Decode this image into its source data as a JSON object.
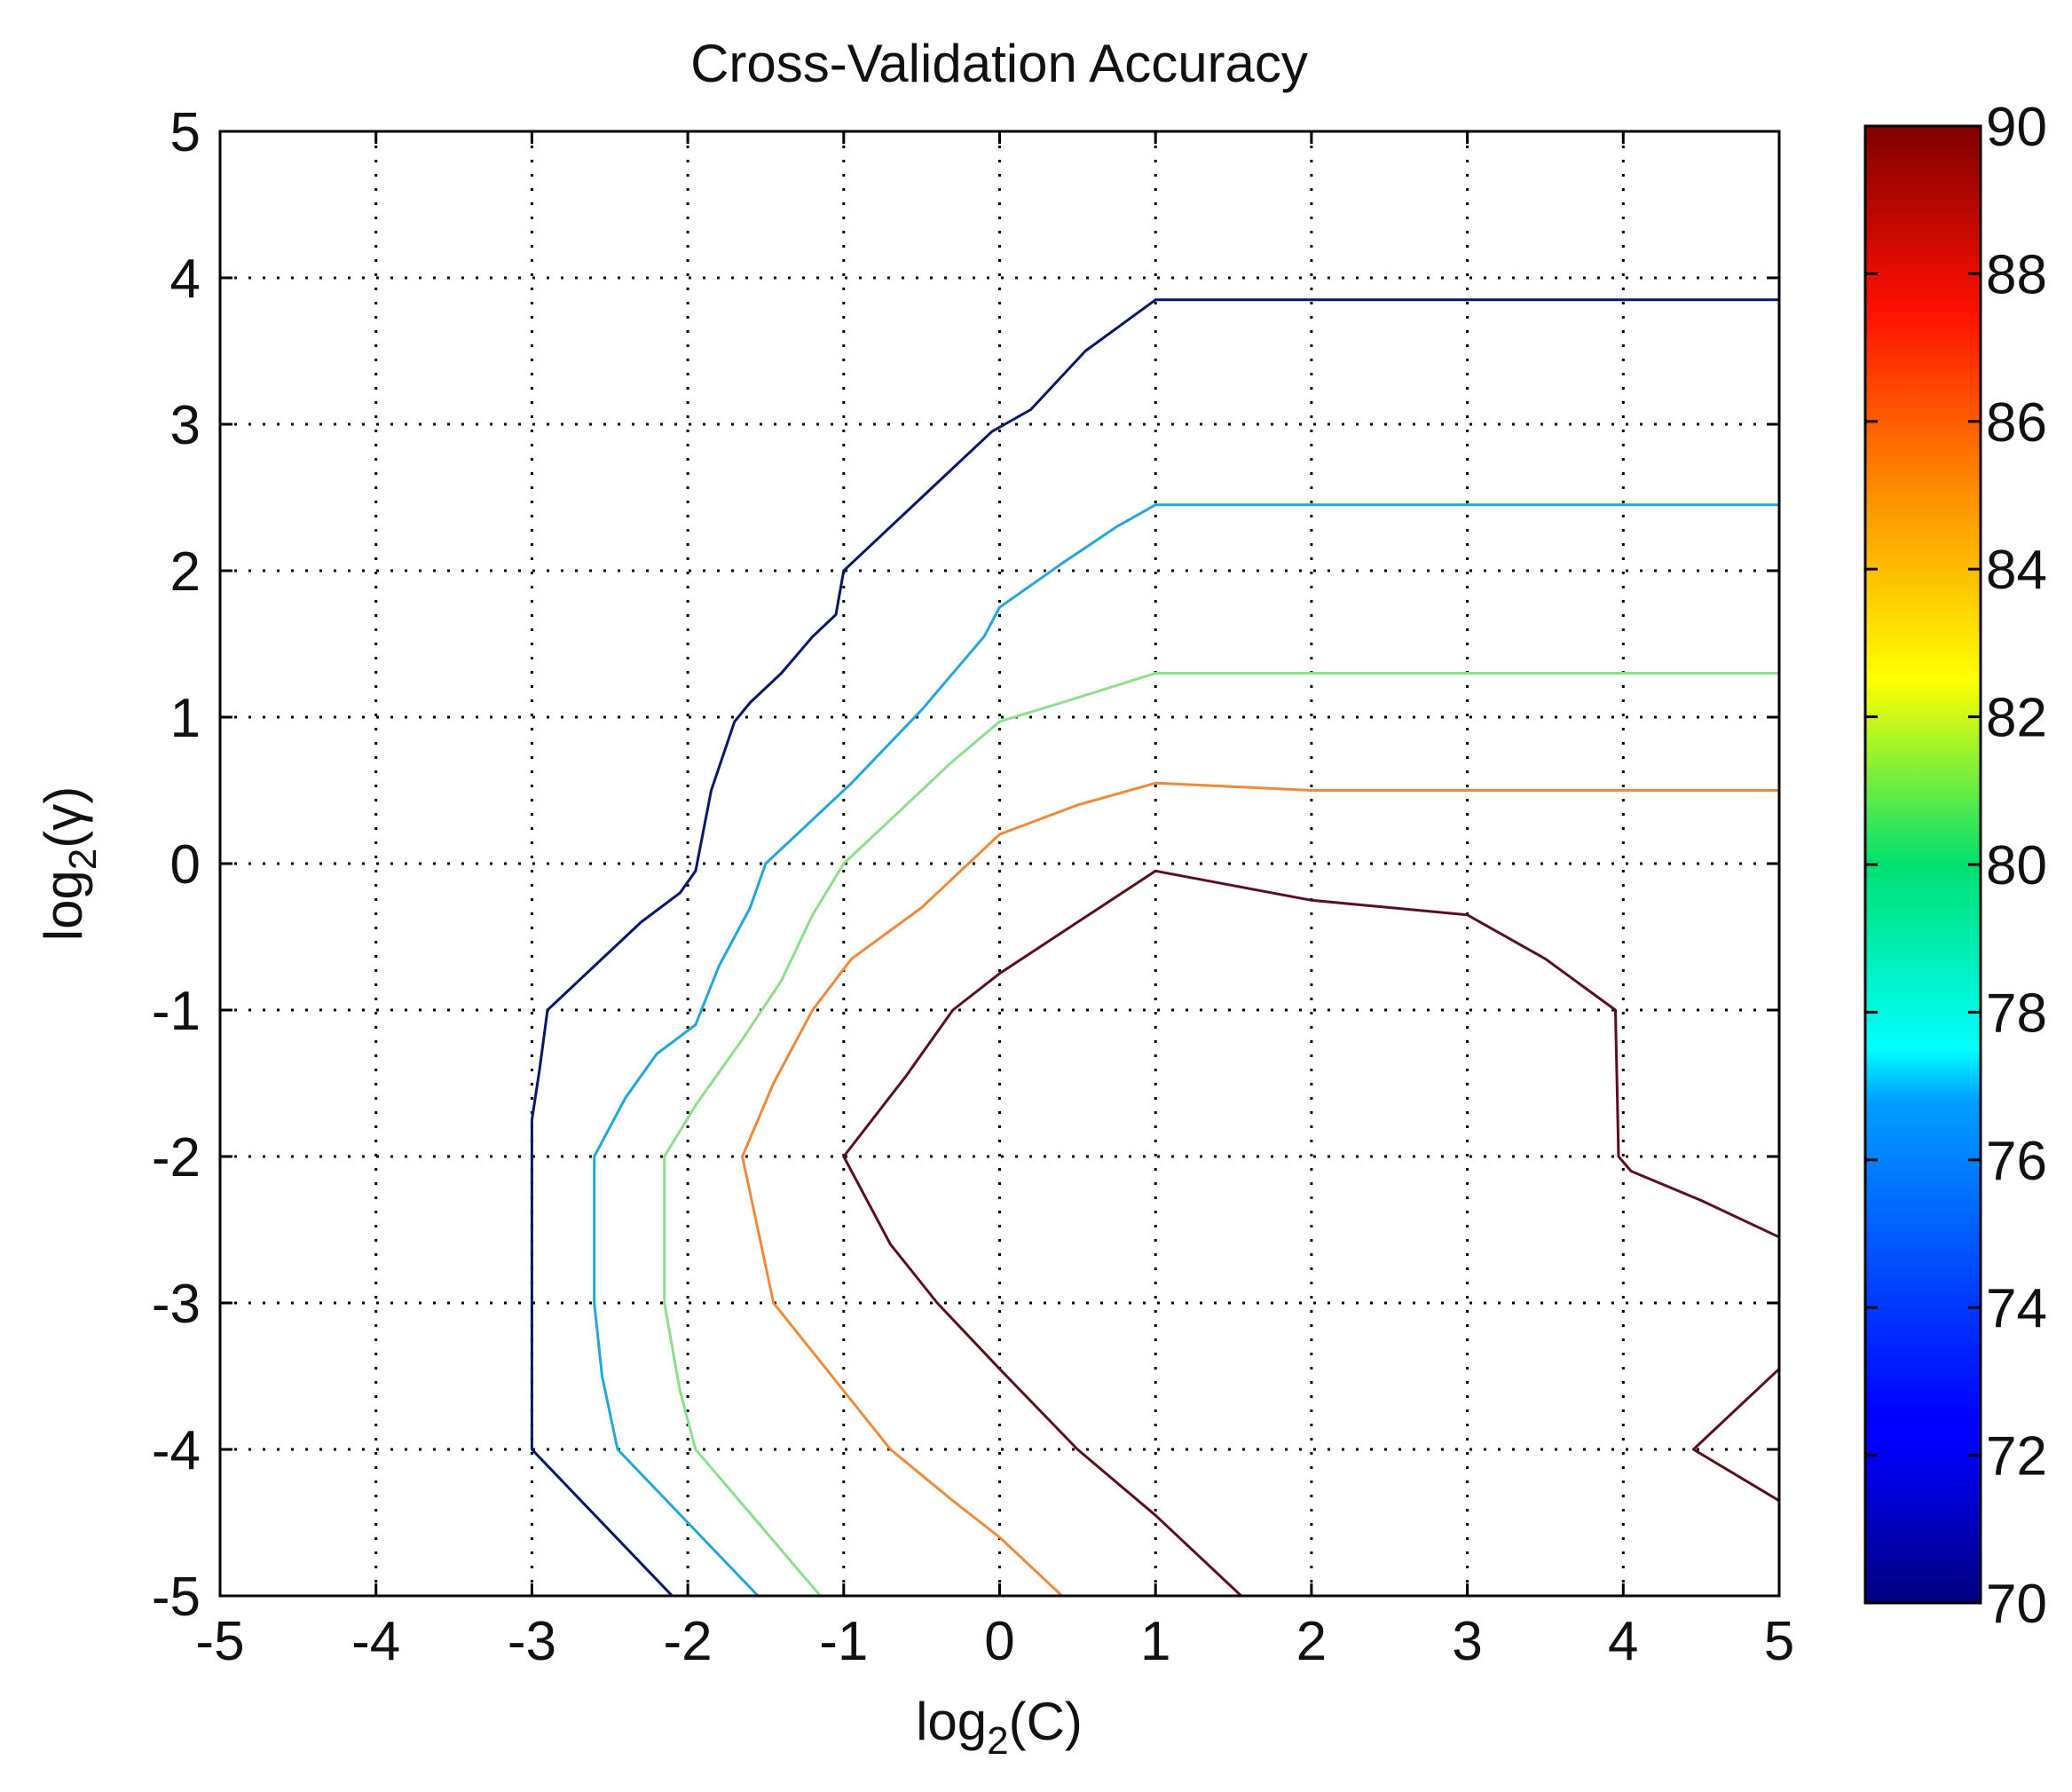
{
  "chart_data": {
    "type": "contour",
    "title": "Cross-Validation Accuracy",
    "xlabel": "log2(C)",
    "xlabel_parts": {
      "base": "log",
      "sub": "2",
      "arg": "(C)"
    },
    "ylabel": "log2(γ)",
    "ylabel_parts": {
      "base": "log",
      "sub": "2",
      "arg": "(γ)"
    },
    "xlim": [
      -5,
      5
    ],
    "ylim": [
      -5,
      5
    ],
    "xticks": [
      -5,
      -4,
      -3,
      -2,
      -1,
      0,
      1,
      2,
      3,
      4,
      5
    ],
    "yticks": [
      -5,
      -4,
      -3,
      -2,
      -1,
      0,
      1,
      2,
      3,
      4,
      5
    ],
    "xtick_labels": [
      "-5",
      "-4",
      "-3",
      "-2",
      "-1",
      "0",
      "1",
      "2",
      "3",
      "4",
      "5"
    ],
    "ytick_labels": [
      "-5",
      "-4",
      "-3",
      "-2",
      "-1",
      "0",
      "1",
      "2",
      "3",
      "4",
      "5"
    ],
    "grid": true,
    "colorbar": {
      "range": [
        70,
        90
      ],
      "ticks": [
        70,
        72,
        74,
        76,
        78,
        80,
        82,
        84,
        86,
        88,
        90
      ],
      "tick_labels": [
        "70",
        "72",
        "74",
        "76",
        "78",
        "80",
        "82",
        "84",
        "86",
        "88",
        "90"
      ],
      "colormap": "jet"
    },
    "contours": [
      {
        "level": 71,
        "color": "#0a1668",
        "segments": [
          [
            [
              -2.1,
              -5
            ],
            [
              -3,
              -4
            ],
            [
              -3,
              -1.75
            ],
            [
              -2.95,
              -1.4
            ],
            [
              -2.9,
              -1
            ],
            [
              -2.6,
              -0.7
            ],
            [
              -2.3,
              -0.4
            ],
            [
              -2.05,
              -0.2
            ],
            [
              -1.95,
              -0.05
            ],
            [
              -1.85,
              0.5
            ],
            [
              -1.7,
              0.97
            ],
            [
              -1.6,
              1.1
            ],
            [
              -1.4,
              1.3
            ],
            [
              -1.2,
              1.55
            ],
            [
              -1.05,
              1.7
            ],
            [
              -1.0,
              2.0
            ],
            [
              -0.6,
              2.4
            ],
            [
              -0.3,
              2.7
            ],
            [
              -0.05,
              2.95
            ],
            [
              0.2,
              3.1
            ],
            [
              0.55,
              3.5
            ],
            [
              1,
              3.85
            ],
            [
              5,
              3.85
            ]
          ]
        ]
      },
      {
        "level": 76,
        "color": "#22a6dc",
        "segments": [
          [
            [
              -1.55,
              -5
            ],
            [
              -2.0,
              -4.5
            ],
            [
              -2.45,
              -4
            ],
            [
              -2.55,
              -3.5
            ],
            [
              -2.6,
              -3
            ],
            [
              -2.6,
              -2
            ],
            [
              -2.4,
              -1.6
            ],
            [
              -2.2,
              -1.3
            ],
            [
              -1.95,
              -1.1
            ],
            [
              -1.8,
              -0.7
            ],
            [
              -1.6,
              -0.3
            ],
            [
              -1.5,
              0
            ],
            [
              -1.3,
              0.2
            ],
            [
              -0.95,
              0.55
            ],
            [
              -0.5,
              1.05
            ],
            [
              -0.1,
              1.55
            ],
            [
              0,
              1.75
            ],
            [
              0.4,
              2.05
            ],
            [
              0.75,
              2.3
            ],
            [
              1,
              2.45
            ],
            [
              5,
              2.45
            ]
          ]
        ]
      },
      {
        "level": 80,
        "color": "#8ce08a",
        "segments": [
          [
            [
              -1.15,
              -5
            ],
            [
              -1.55,
              -4.5
            ],
            [
              -1.95,
              -4
            ],
            [
              -2.05,
              -3.6
            ],
            [
              -2.15,
              -3.0
            ],
            [
              -2.15,
              -2.0
            ],
            [
              -1.95,
              -1.65
            ],
            [
              -1.65,
              -1.2
            ],
            [
              -1.4,
              -0.8
            ],
            [
              -1.2,
              -0.35
            ],
            [
              -1,
              0
            ],
            [
              -0.65,
              0.35
            ],
            [
              -0.3,
              0.7
            ],
            [
              0,
              0.97
            ],
            [
              0.4,
              1.1
            ],
            [
              1,
              1.3
            ],
            [
              5,
              1.3
            ]
          ]
        ]
      },
      {
        "level": 84,
        "color": "#f08a3a",
        "segments": [
          [
            [
              0.4,
              -5
            ],
            [
              0,
              -4.6
            ],
            [
              -0.3,
              -4.35
            ],
            [
              -0.7,
              -4
            ],
            [
              -1,
              -3.6
            ],
            [
              -1.45,
              -3
            ],
            [
              -1.55,
              -2.5
            ],
            [
              -1.65,
              -2.0
            ],
            [
              -1.45,
              -1.5
            ],
            [
              -1.2,
              -1
            ],
            [
              -0.95,
              -0.65
            ],
            [
              -0.5,
              -0.3
            ],
            [
              0,
              0.2
            ],
            [
              0.5,
              0.4
            ],
            [
              1,
              0.55
            ],
            [
              1.4,
              0.53
            ],
            [
              2,
              0.5
            ],
            [
              3,
              0.5
            ],
            [
              4,
              0.5
            ],
            [
              5,
              0.5
            ]
          ]
        ]
      },
      {
        "level": 88,
        "color": "#5a0f1e",
        "segments": [
          [
            [
              1.55,
              -5
            ],
            [
              1,
              -4.45
            ],
            [
              0.5,
              -4.0
            ],
            [
              0,
              -3.45
            ],
            [
              -0.4,
              -3.0
            ],
            [
              -0.7,
              -2.6
            ],
            [
              -1,
              -2.0
            ],
            [
              -0.6,
              -1.45
            ],
            [
              -0.3,
              -1
            ],
            [
              0,
              -0.75
            ],
            [
              0.5,
              -0.4
            ],
            [
              1,
              -0.05
            ],
            [
              1.5,
              -0.15
            ],
            [
              2,
              -0.25
            ],
            [
              2.5,
              -0.3
            ],
            [
              3,
              -0.35
            ],
            [
              3.5,
              -0.65
            ],
            [
              3.95,
              -1
            ],
            [
              3.97,
              -2
            ],
            [
              4.05,
              -2.1
            ],
            [
              4.5,
              -2.3
            ],
            [
              5,
              -2.55
            ]
          ],
          [
            [
              5,
              -3.45
            ],
            [
              4.45,
              -4.0
            ],
            [
              5,
              -4.35
            ]
          ]
        ]
      }
    ]
  }
}
